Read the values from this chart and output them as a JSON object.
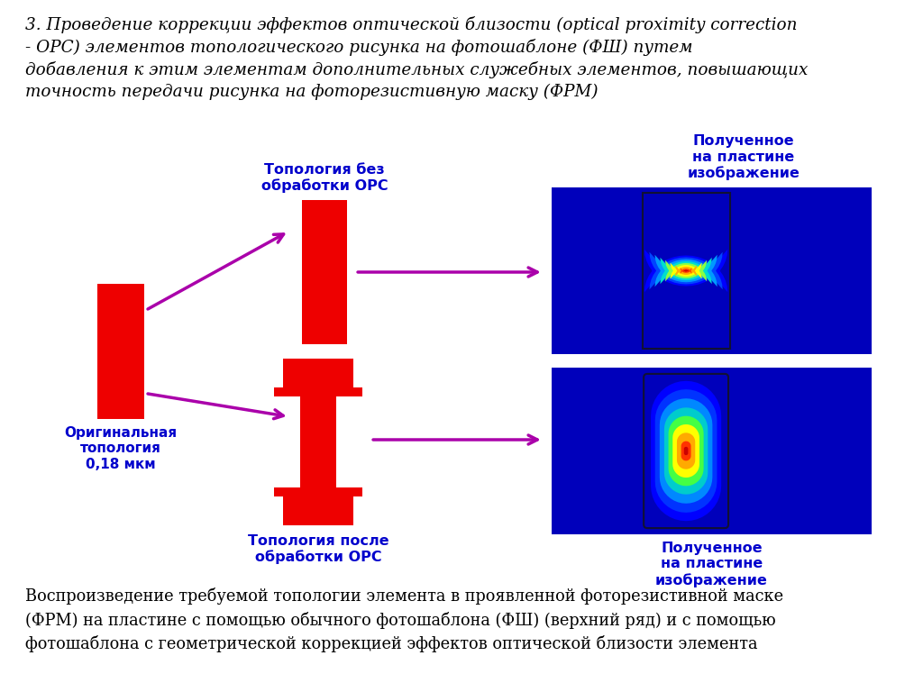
{
  "bg_color": "#ffffff",
  "title_text": "3. Проведение коррекции эффектов оптической близости (optical proximity correction\n- OPC) элементов топологического рисунка на фотошаблоне (ФШ) путем\nдобавления к этим элементам дополнительных служебных элементов, повышающих\nточность передачи рисунка на фоторезистивную маску (ФРМ)",
  "bottom_text": "Воспроизведение требуемой топологии элемента в проявленной фоторезистивной маске\n(ФРМ) на пластине с помощью обычного фотошаблона (ФШ) (верхний ряд) и с помощью\nфотошаблона с геометрической коррекцией эффектов оптической близости элемента",
  "label_orig": "Оригинальная\nтопология\n0,18 мкм",
  "label_top": "Топология без\nобработки ОРС",
  "label_bot": "Топология после\nобработки ОРС",
  "label_right_top": "Полученное\nна пластине\nизображение",
  "label_right_bot": "Полученное\nна пластине\nизображение",
  "arrow_color": "#aa00aa",
  "text_color_blue": "#0000cc",
  "text_color_black": "#000000",
  "red_color": "#ee0000",
  "blue_bg": "#0000cc"
}
